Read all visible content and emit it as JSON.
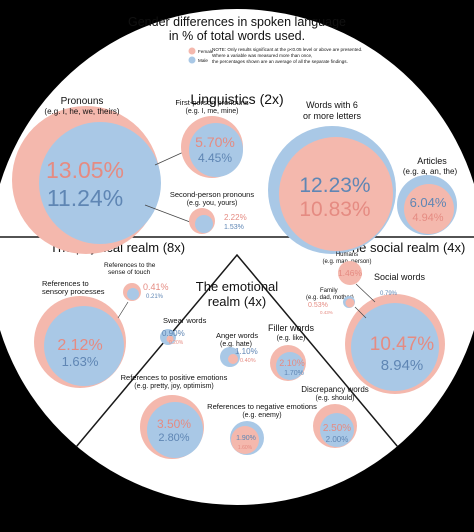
{
  "colors": {
    "background": "#000000",
    "disc": "#ffffff",
    "female": "#f4b8ad",
    "male": "#a9c8e6",
    "female_text": "#e58b82",
    "male_text": "#5f86b4",
    "divider": "#1a1a1a"
  },
  "header": {
    "title_line1": "Gender differences in spoken language",
    "title_line2": "in % of total words used.",
    "note_line1": "NOTE: Only results significant at the p<0.05 level or above are presented.",
    "note_line2": "Where a variable was measured more than once,",
    "note_line3": "the percentages shown are an average of all the separate findings.",
    "legend": {
      "female_label": "Female",
      "male_label": "Male"
    }
  },
  "sections": {
    "linguistics": "Linguistics (2x)",
    "physical": "The physical realm (8x)",
    "social": "The social realm (4x)",
    "emotional_line1": "The emotional",
    "emotional_line2": "realm (4x)"
  },
  "categories": {
    "pronouns": {
      "title": "Pronouns",
      "sub": "(e.g. I, he, we, theirs)",
      "female": "13.05%",
      "male": "11.24%"
    },
    "first_person": {
      "title": "First-person pronouns",
      "sub": "(e.g. I, me, mine)",
      "female": "5.70%",
      "male": "4.45%"
    },
    "second_person": {
      "title": "Second-person pronouns",
      "sub": "(e.g. you, yours)",
      "female": "2.22%",
      "male": "1.53%"
    },
    "long_words": {
      "title_line1": "Words with 6",
      "title_line2": "or more letters",
      "male": "12.23%",
      "female": "10.83%"
    },
    "articles": {
      "title": "Articles",
      "sub": "(e.g. a, an, the)",
      "male": "6.04%",
      "female": "4.94%"
    },
    "sensory": {
      "title_line1": "References to",
      "title_line2": "sensory processes",
      "female": "2.12%",
      "male": "1.63%"
    },
    "touch": {
      "title_line1": "References to the",
      "title_line2": "sense of touch",
      "female": "0.41%",
      "male": "0.21%"
    },
    "humans": {
      "title": "Humans",
      "sub": "(e.g. man, person)",
      "female": "1.46%"
    },
    "social_words": {
      "title": "Social words",
      "female": "10.47%",
      "male": "8.94%"
    },
    "family": {
      "title": "Family",
      "sub": "(e.g. dad, mother)",
      "female": "0.53%",
      "male": "0.79%",
      "female_small": "0.43%"
    },
    "swear": {
      "title": "Swear words",
      "male": "0.90%",
      "female": "0.20%"
    },
    "anger": {
      "title": "Anger words",
      "sub": "(e.g. hate)",
      "male": "1.10%",
      "female": "0.40%"
    },
    "filler": {
      "title": "Filler words",
      "sub": "(e.g. like)",
      "female": "2.10%",
      "male": "1.70%"
    },
    "positive": {
      "title_line1": "References to positive emotions",
      "title_line2": "(e.g. pretty, joy, optimism)",
      "female": "3.50%",
      "male": "2.80%"
    },
    "negative": {
      "title_line1": "References to negative emotions",
      "title_line2": "(e.g. enemy)",
      "male": "1.90%",
      "female": "1.60%"
    },
    "discrepancy": {
      "title": "Discrepancy words",
      "sub": "(e.g. should)",
      "female": "2.50%",
      "male": "2.00%"
    }
  }
}
